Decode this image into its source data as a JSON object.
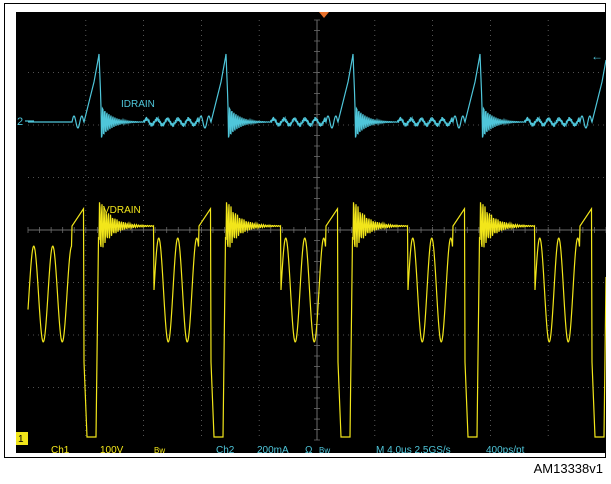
{
  "scope": {
    "background_color": "#000000",
    "grid_color": "#6b6b6b",
    "trigger_marker_color": "#e8702a",
    "ch1": {
      "color": "#f2e61a",
      "trace_label": "VDRAIN",
      "name": "Ch1",
      "scale": "100V",
      "bandwidth": "Bw",
      "ground_marker": "1"
    },
    "ch2": {
      "color": "#4fc6da",
      "trace_label": "IDRAIN",
      "name": "Ch2",
      "scale": "200mA",
      "impedance": "Ω",
      "bandwidth": "Bw",
      "ground_marker": "2"
    },
    "timebase": {
      "main": "M 4.0µs 2.5GS/s",
      "record": "400ps/pt"
    }
  },
  "figure_id": "AM13338v1"
}
